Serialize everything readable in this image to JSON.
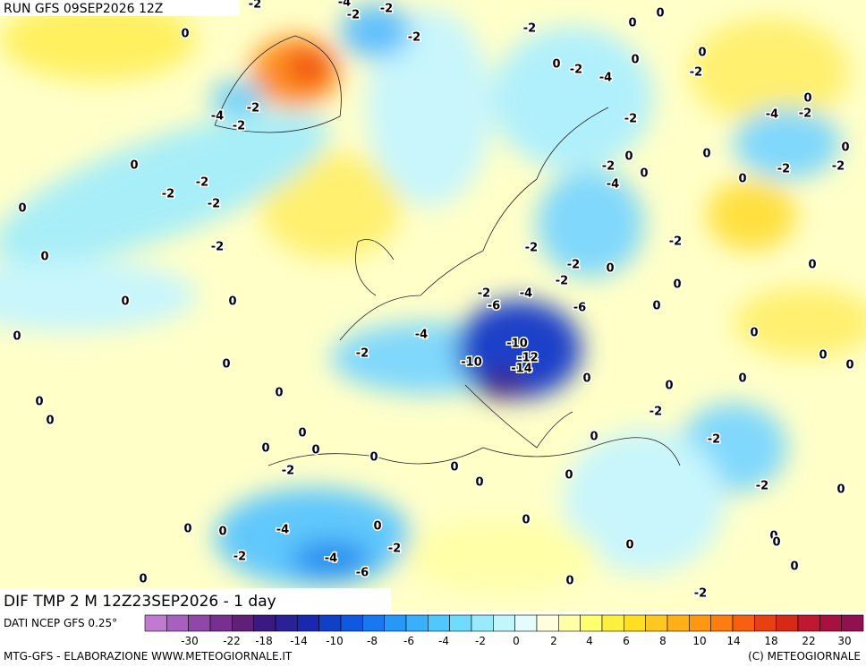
{
  "header": {
    "run": "RUN GFS 09SEP2026 12Z"
  },
  "map": {
    "title": "DIF TMP 2 M 12Z23SEP2026 - 1 day",
    "contour_labels": [
      "-2",
      "-4",
      "-2",
      "-2",
      "-2",
      "0",
      "-4",
      "-2",
      "-2",
      "-2",
      "0",
      "-2",
      "-4",
      "0",
      "0",
      "0",
      "0",
      "-2",
      "-2",
      "0",
      "-2",
      "-2",
      "-2",
      "0",
      "-2",
      "0",
      "0",
      "0",
      "0",
      "0",
      "-4",
      "-2",
      "-10",
      "-12",
      "-14",
      "-10",
      "-6",
      "-4",
      "-2",
      "-2",
      "-2",
      "-2",
      "-6",
      "-4",
      "-2",
      "0",
      "0",
      "-4",
      "-2",
      "0",
      "0",
      "-2",
      "-2",
      "0",
      "0",
      "-2",
      "0",
      "0",
      "0",
      "0",
      "0",
      "0",
      "0",
      "0",
      "0",
      "-2",
      "-2",
      "-2",
      "0",
      "0",
      "0",
      "0",
      "0",
      "0",
      "0",
      "0",
      "0",
      "-2",
      "0",
      "0",
      "0",
      "0",
      "-4",
      "0",
      "0",
      "0",
      "0",
      "-2",
      "-2",
      "-4",
      "-6",
      "0",
      "0",
      "0",
      "0",
      "0",
      "0",
      "-2"
    ]
  },
  "colorbar": {
    "source": "DATI NCEP GFS 0.25°",
    "colors": [
      "#c07ad0",
      "#a860c0",
      "#9048a8",
      "#783090",
      "#602078",
      "#3a1a80",
      "#2a2098",
      "#1a28b0",
      "#1040c8",
      "#1058e0",
      "#1878f0",
      "#2898f8",
      "#38b0fc",
      "#50c8fc",
      "#70dcfc",
      "#98eafc",
      "#c0f6fc",
      "#e4fcfc",
      "#ffffe0",
      "#ffffa8",
      "#ffff70",
      "#fff040",
      "#ffe020",
      "#ffc820",
      "#ffb018",
      "#ff9810",
      "#ff7c10",
      "#f86010",
      "#e84010",
      "#d82818",
      "#c01830",
      "#a81040",
      "#901050"
    ],
    "tick_labels": [
      "-30",
      "-22",
      "-18",
      "-14",
      "-10",
      "-8",
      "-6",
      "-4",
      "-2",
      "0",
      "2",
      "4",
      "6",
      "8",
      "10",
      "14",
      "18",
      "22",
      "30"
    ]
  },
  "footer": {
    "left": "MTG-GFS - ELABORAZIONE WWW.METEOGIORNALE.IT",
    "right": "(C) METEOGIORNALE"
  }
}
